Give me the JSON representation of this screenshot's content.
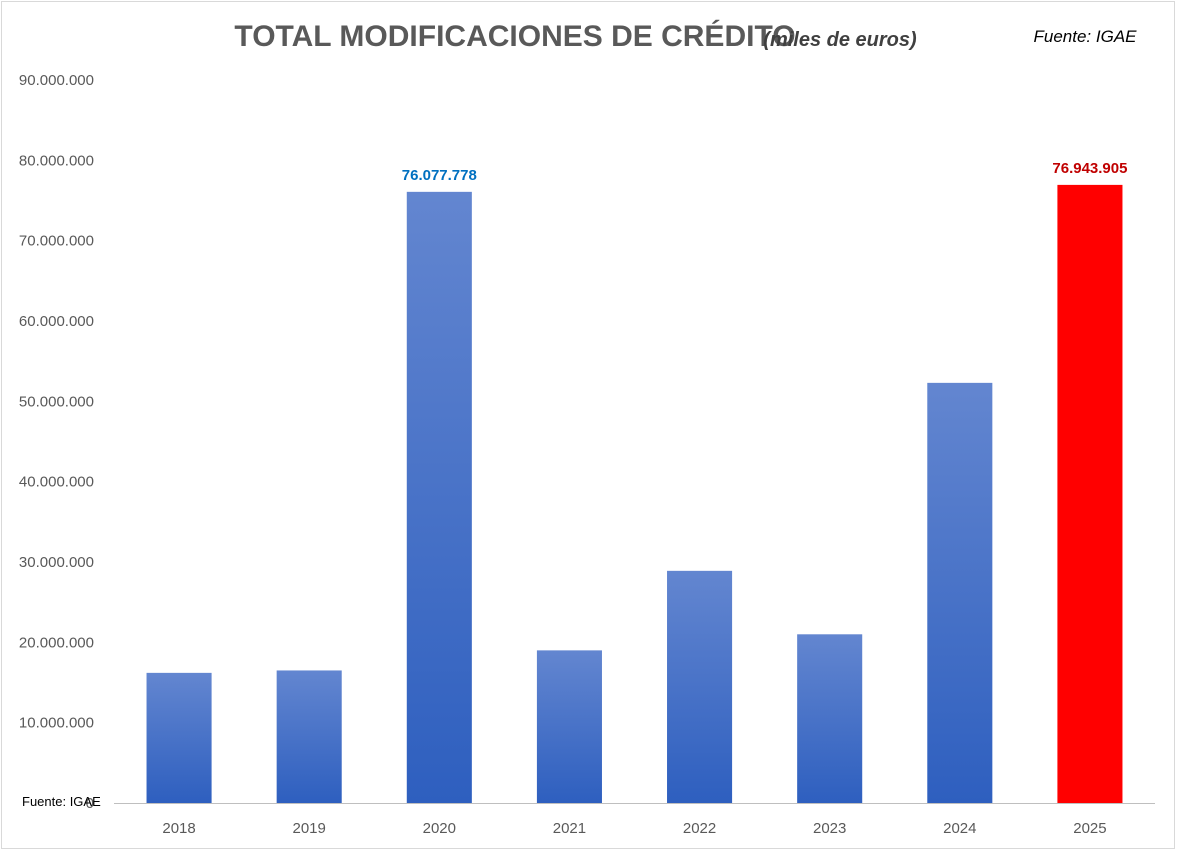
{
  "chart_data": {
    "type": "bar",
    "title": "TOTAL MODIFICACIONES DE CRÉDITO",
    "subtitle": "(miles de euros)",
    "source": "Fuente: IGAE",
    "footnote": "Fuente: IGAE",
    "categories": [
      "2018",
      "2019",
      "2020",
      "2021",
      "2022",
      "2023",
      "2024",
      "2025"
    ],
    "values": [
      16200000,
      16500000,
      76077778,
      19000000,
      28900000,
      21000000,
      52300000,
      76943905
    ],
    "data_labels": [
      {
        "index": 2,
        "text": "76.077.778",
        "color": "#0070c0"
      },
      {
        "index": 7,
        "text": "76.943.905",
        "color": "#c00000"
      }
    ],
    "highlight_index": 7,
    "colors": {
      "bar_top": "#6386d0",
      "bar_bottom": "#2e5fbf",
      "highlight": "#ff0000",
      "axis": "#bfbfbf"
    },
    "ylim": [
      0,
      90000000
    ],
    "yticks": [
      "0",
      "10.000.000",
      "20.000.000",
      "30.000.000",
      "40.000.000",
      "50.000.000",
      "60.000.000",
      "70.000.000",
      "80.000.000",
      "90.000.000"
    ],
    "ytick_step": 10000000,
    "grid": false,
    "xlabel": "",
    "ylabel": ""
  }
}
